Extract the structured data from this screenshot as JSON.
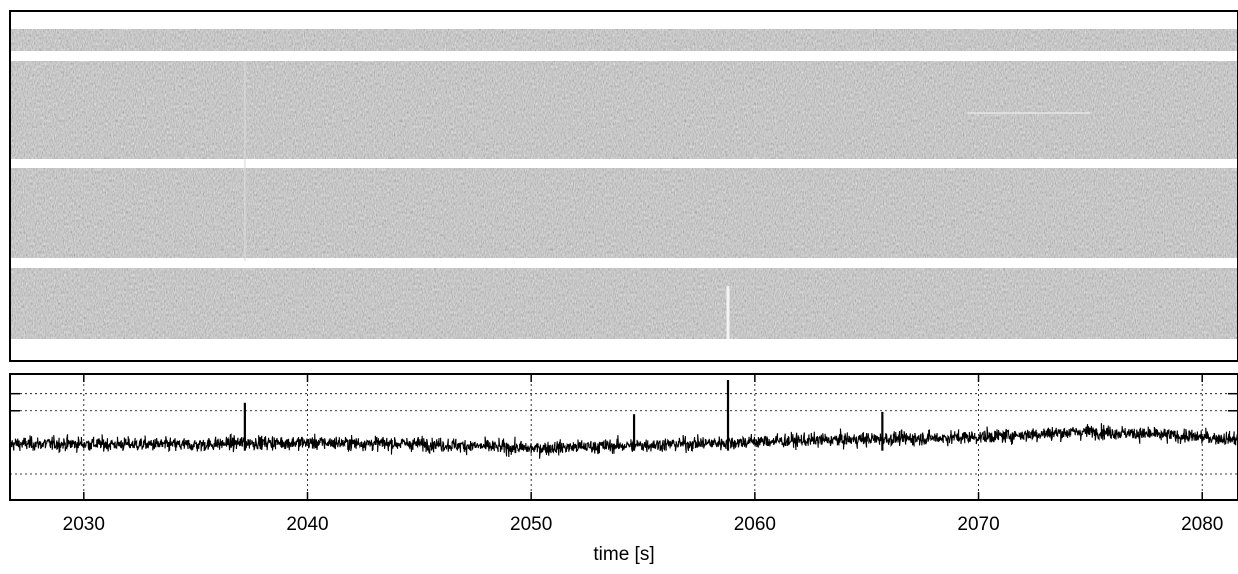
{
  "chart_data": [
    {
      "type": "heatmap",
      "title": "",
      "xlabel": "",
      "ylabel": "",
      "colormap": "grayscale",
      "xlim": [
        2026.7,
        2081.6
      ],
      "bands": 4,
      "features": [
        {
          "kind": "faint-vertical-streak",
          "x": 2037.2
        },
        {
          "kind": "bright-vertical-streak",
          "x": 2058.8,
          "band": 4
        },
        {
          "kind": "faint-horizontal-streak",
          "x_range": [
            2069.5,
            2075
          ],
          "band": 2
        }
      ]
    },
    {
      "type": "line",
      "title": "",
      "xlabel": "time [s]",
      "ylabel": "",
      "xlim": [
        2026.7,
        2081.6
      ],
      "xticks": [
        2030,
        2040,
        2050,
        2060,
        2070,
        2080
      ],
      "xtick_labels": [
        "2030",
        "2040",
        "2050",
        "2060",
        "2070",
        "2080"
      ],
      "grid": true,
      "series": [
        {
          "values_description": "noisy time series around a slowly varying baseline with spikes",
          "x": [
            2026.7,
            2030,
            2035,
            2037.2,
            2040,
            2045,
            2050,
            2055,
            2058.8,
            2060,
            2065,
            2070,
            2075,
            2078,
            2081.6
          ],
          "y": [
            0.44,
            0.44,
            0.43,
            0.8,
            0.45,
            0.44,
            0.4,
            0.43,
            1.0,
            0.46,
            0.48,
            0.5,
            0.55,
            0.52,
            0.48
          ],
          "spikes": [
            {
              "x": 2037.2,
              "y": 0.8
            },
            {
              "x": 2054.6,
              "y": 0.7
            },
            {
              "x": 2058.8,
              "y": 1.0
            },
            {
              "x": 2065.7,
              "y": 0.72
            }
          ]
        }
      ]
    }
  ]
}
